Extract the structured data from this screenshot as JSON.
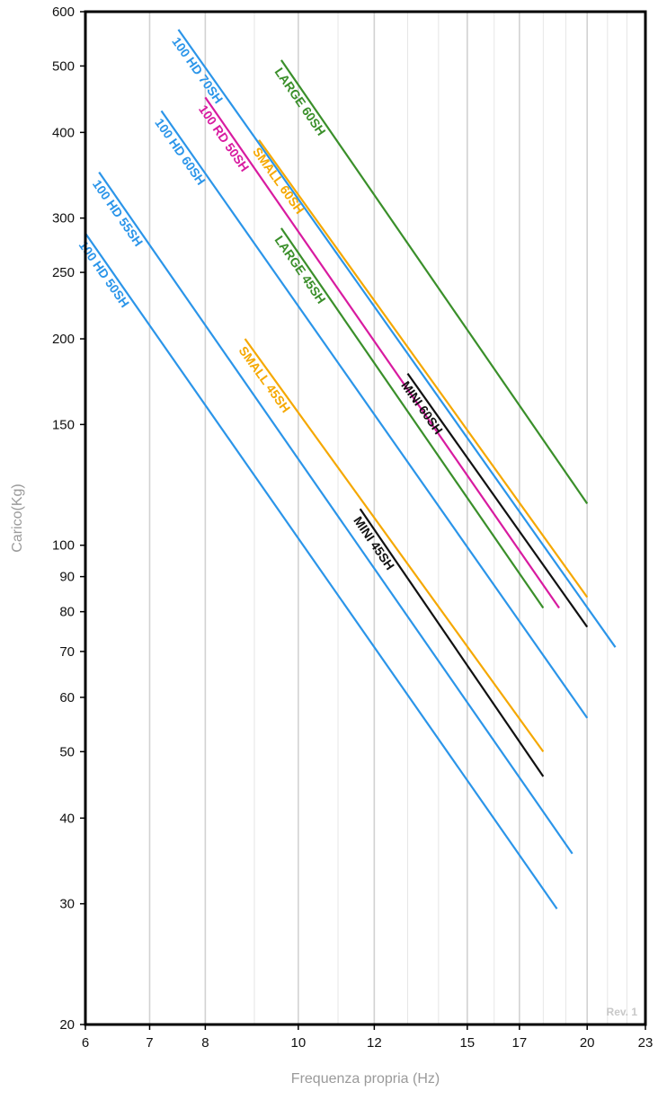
{
  "chart_data": {
    "type": "line",
    "xlabel": "Frequenza propria (Hz)",
    "ylabel": "Carico(Kg)",
    "x_scale": "log",
    "y_scale": "log",
    "xlim": [
      6,
      23
    ],
    "ylim": [
      20,
      600
    ],
    "x_ticks": [
      6,
      7,
      8,
      10,
      12,
      15,
      17,
      20,
      23
    ],
    "y_ticks": [
      20,
      30,
      40,
      50,
      60,
      70,
      80,
      90,
      100,
      150,
      200,
      250,
      300,
      400,
      500,
      600
    ],
    "grid": true,
    "annotation": "Rev. 1",
    "series": [
      {
        "name": "100 HD 50SH",
        "color": "#2b95e9",
        "x": [
          6.0,
          18.6
        ],
        "y": [
          285,
          29.5
        ]
      },
      {
        "name": "100 HD 55SH",
        "color": "#2b95e9",
        "x": [
          6.2,
          19.3
        ],
        "y": [
          350,
          35.5
        ]
      },
      {
        "name": "100 HD 60SH",
        "color": "#2b95e9",
        "x": [
          7.2,
          20.0
        ],
        "y": [
          430,
          56
        ]
      },
      {
        "name": "100 HD 70SH",
        "color": "#2b95e9",
        "x": [
          7.5,
          21.4
        ],
        "y": [
          565,
          71
        ]
      },
      {
        "name": "100 RD 50SH",
        "color": "#d81ba0",
        "x": [
          8.0,
          18.7
        ],
        "y": [
          450,
          81
        ]
      },
      {
        "name": "SMALL 60SH",
        "color": "#f5a800",
        "x": [
          9.1,
          20.0
        ],
        "y": [
          390,
          84
        ]
      },
      {
        "name": "LARGE 60SH",
        "color": "#3a8f2a",
        "x": [
          9.6,
          20.0
        ],
        "y": [
          510,
          115
        ]
      },
      {
        "name": "LARGE 45SH",
        "color": "#3a8f2a",
        "x": [
          9.6,
          18.0
        ],
        "y": [
          290,
          81
        ]
      },
      {
        "name": "SMALL 45SH",
        "color": "#f5a800",
        "x": [
          8.8,
          18.0
        ],
        "y": [
          200,
          50
        ]
      },
      {
        "name": "MINI 60SH",
        "color": "#111111",
        "x": [
          13.0,
          20.0
        ],
        "y": [
          178,
          76
        ]
      },
      {
        "name": "MINI 45SH",
        "color": "#111111",
        "x": [
          11.6,
          18.0
        ],
        "y": [
          113,
          46
        ]
      }
    ]
  }
}
